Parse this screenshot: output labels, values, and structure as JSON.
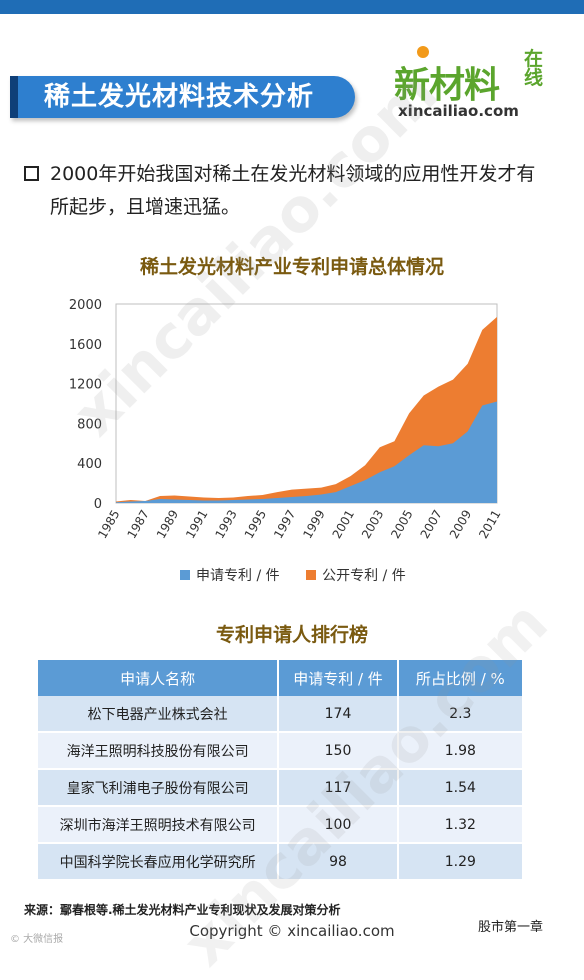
{
  "header": {
    "title": "稀土发光材料技术分析"
  },
  "logo": {
    "main": "新材料",
    "side": "在线",
    "url": "xincailiao.com"
  },
  "intro": "2000年开始我国对稀土在发光材料领域的应用性开发才有所起步，且增速迅猛。",
  "watermark": "xincailiao.com",
  "colors": {
    "applied": "#5b9bd5",
    "public": "#ed7d31"
  },
  "chart_data": {
    "type": "area",
    "title": "稀土发光材料产业专利申请总体情况",
    "x": [
      "1985",
      "1986",
      "1987",
      "1988",
      "1989",
      "1990",
      "1991",
      "1992",
      "1993",
      "1994",
      "1995",
      "1996",
      "1997",
      "1998",
      "1999",
      "2000",
      "2001",
      "2002",
      "2003",
      "2004",
      "2005",
      "2006",
      "2007",
      "2008",
      "2009",
      "2010",
      "2011"
    ],
    "x_tick_labels": [
      "1985",
      "1987",
      "1989",
      "1991",
      "1993",
      "1995",
      "1997",
      "1999",
      "2001",
      "2003",
      "2005",
      "2007",
      "2009",
      "2011"
    ],
    "series": [
      {
        "name": "申请专利 / 件",
        "values": [
          8,
          15,
          20,
          40,
          35,
          30,
          25,
          25,
          30,
          35,
          40,
          50,
          60,
          70,
          85,
          110,
          170,
          230,
          310,
          370,
          480,
          580,
          570,
          600,
          720,
          980,
          1020
        ]
      },
      {
        "name": "公开专利 / 件",
        "values": [
          15,
          30,
          20,
          70,
          75,
          65,
          55,
          50,
          55,
          70,
          80,
          110,
          135,
          145,
          155,
          190,
          270,
          380,
          560,
          620,
          900,
          1080,
          1170,
          1240,
          1400,
          1740,
          1870
        ]
      }
    ],
    "stacked": false,
    "ylim": [
      0,
      2000
    ],
    "yticks": [
      0,
      400,
      800,
      1200,
      1600,
      2000
    ],
    "grid": false,
    "legend": "bottom"
  },
  "ranking": {
    "title": "专利申请人排行榜",
    "headers": [
      "申请人名称",
      "申请专利 / 件",
      "所占比例 / %"
    ],
    "rows": [
      [
        "松下电器产业株式会社",
        "174",
        "2.3"
      ],
      [
        "海洋王照明科技股份有限公司",
        "150",
        "1.98"
      ],
      [
        "皇家飞利浦电子股份有限公司",
        "117",
        "1.54"
      ],
      [
        "深圳市海洋王照明技术有限公司",
        "100",
        "1.32"
      ],
      [
        "中国科学院长春应用化学研究所",
        "98",
        "1.29"
      ]
    ]
  },
  "source": "来源：鄢春根等.稀土发光材料产业专利现状及发展对策分析",
  "copyright": "Copyright © xincailiao.com",
  "footer_left": "© 大微信报",
  "footer_right": "股市第一章"
}
